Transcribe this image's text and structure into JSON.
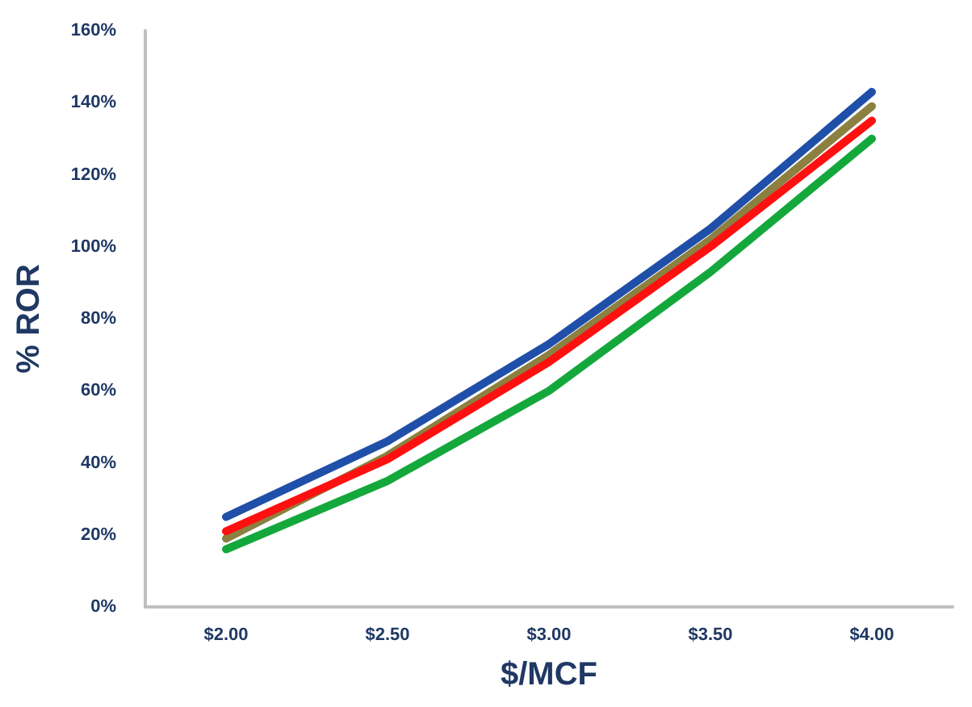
{
  "chart_data": {
    "type": "line",
    "xlabel": "$/MCF",
    "ylabel": "% ROR",
    "categories": [
      "$2.00",
      "$2.50",
      "$3.00",
      "$3.50",
      "$4.00"
    ],
    "series": [
      {
        "color": "#1f4fa8",
        "values": [
          25,
          46,
          73,
          105,
          143
        ]
      },
      {
        "color": "#8c8040",
        "values": [
          19,
          42,
          70,
          102,
          139
        ]
      },
      {
        "color": "#ff1010",
        "values": [
          21,
          41,
          68,
          100,
          135
        ]
      },
      {
        "color": "#14a83c",
        "values": [
          16,
          35,
          60,
          93,
          130
        ]
      }
    ],
    "ylim": [
      0,
      160
    ],
    "yticks": [
      {
        "value": 0,
        "label": "0%"
      },
      {
        "value": 20,
        "label": "20%"
      },
      {
        "value": 40,
        "label": "40%"
      },
      {
        "value": 60,
        "label": "60%"
      },
      {
        "value": 80,
        "label": "80%"
      },
      {
        "value": 100,
        "label": "100%"
      },
      {
        "value": 120,
        "label": "120%"
      },
      {
        "value": 140,
        "label": "140%"
      },
      {
        "value": 160,
        "label": "160%"
      }
    ],
    "grid": false,
    "marker": "none",
    "line_style": "solid"
  }
}
